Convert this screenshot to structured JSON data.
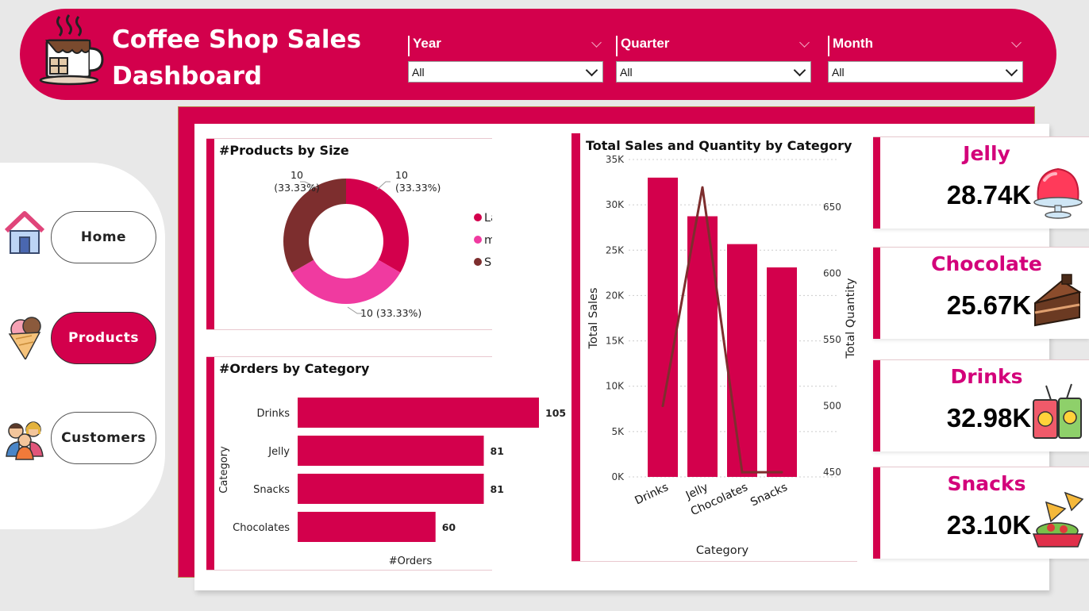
{
  "header": {
    "title_line1": "Coffee Shop Sales",
    "title_line2": "Dashboard",
    "logo_icon": "coffee-cup-icon"
  },
  "slicers": [
    {
      "label": "Year",
      "value": "All"
    },
    {
      "label": "Quarter",
      "value": "All"
    },
    {
      "label": "Month",
      "value": "All"
    }
  ],
  "nav": {
    "items": [
      {
        "label": "Home",
        "icon": "house-icon",
        "active": false
      },
      {
        "label": "Products",
        "icon": "ice-cream-icon",
        "active": true
      },
      {
        "label": "Customers",
        "icon": "people-icon",
        "active": false
      }
    ]
  },
  "colors": {
    "accent": "#d3004c",
    "large": "#d3004c",
    "medium": "#f03aa0",
    "small": "#7d2e2e",
    "line": "#7d2e2e",
    "kpi_name": "#d3007a"
  },
  "kpis": [
    {
      "name": "Jelly",
      "value": "28.74K",
      "icon": "jelly-icon"
    },
    {
      "name": "Chocolate",
      "value": "25.67K",
      "icon": "cake-slice-icon"
    },
    {
      "name": "Drinks",
      "value": "32.98K",
      "icon": "drinks-icon"
    },
    {
      "name": "Snacks",
      "value": "23.10K",
      "icon": "nachos-icon"
    }
  ],
  "chart_data": [
    {
      "type": "pie",
      "title": "#Products by Size",
      "donut": true,
      "categories": [
        "Large",
        "medium",
        "Small"
      ],
      "values": [
        10,
        10,
        10
      ],
      "labels": [
        "10 (33.33%)",
        "10 (33.33%)",
        "10 (33.33%)"
      ],
      "legend": "right"
    },
    {
      "type": "bar",
      "orientation": "horizontal",
      "title": "#Orders by Category",
      "categories": [
        "Drinks",
        "Jelly",
        "Snacks",
        "Chocolates"
      ],
      "values": [
        105,
        81,
        81,
        60
      ],
      "xlabel": "#Orders",
      "ylabel": "Category",
      "xlim": [
        0,
        110
      ]
    },
    {
      "type": "bar",
      "title": "Total Sales and Quantity by Category",
      "categories": [
        "Drinks",
        "Jelly",
        "Chocolates",
        "Snacks"
      ],
      "series": [
        {
          "name": "Total Sales",
          "values": [
            33000,
            28740,
            25670,
            23100
          ],
          "type": "bar",
          "axis": "left"
        },
        {
          "name": "Total Quantity",
          "values": [
            500,
            665,
            450,
            450
          ],
          "type": "line",
          "axis": "right"
        }
      ],
      "xlabel": "Category",
      "ylabel": "Total Sales",
      "y2label": "Total Quantity",
      "ylim": [
        0,
        35000
      ],
      "y2lim": [
        440,
        680
      ],
      "yticks": [
        "0K",
        "5K",
        "10K",
        "15K",
        "20K",
        "25K",
        "30K",
        "35K"
      ],
      "y2ticks": [
        450,
        500,
        550,
        600,
        650
      ],
      "grid": true
    }
  ]
}
